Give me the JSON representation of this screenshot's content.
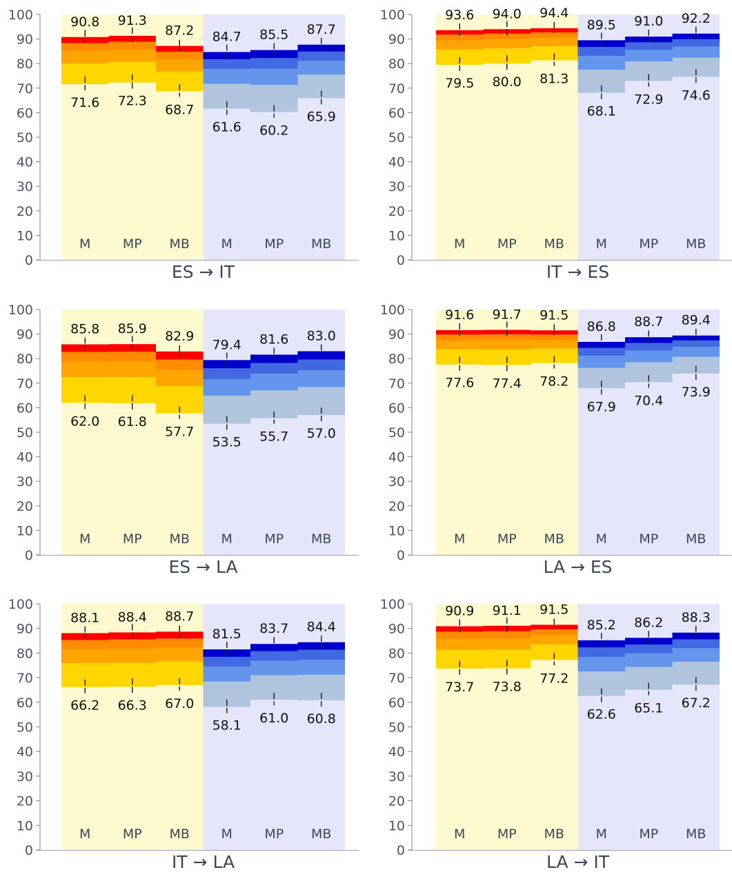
{
  "chart_data": [
    {
      "type": "bar",
      "title": "ES → IT",
      "categories": [
        "M",
        "MP",
        "MB",
        "M",
        "MP",
        "MB"
      ],
      "series": [
        {
          "values": [
            71.6,
            72.3,
            68.7,
            61.6,
            60.2,
            65.9
          ]
        },
        {
          "values": [
            90.8,
            91.3,
            87.2,
            84.7,
            85.5,
            87.7
          ]
        }
      ],
      "ylim": [
        0,
        100
      ],
      "yticks": [
        0,
        10,
        20,
        30,
        40,
        50,
        60,
        70,
        80,
        90,
        100
      ]
    },
    {
      "type": "bar",
      "title": "IT → ES",
      "categories": [
        "M",
        "MP",
        "MB",
        "M",
        "MP",
        "MB"
      ],
      "series": [
        {
          "values": [
            79.5,
            80.0,
            81.3,
            68.1,
            72.9,
            74.6
          ]
        },
        {
          "values": [
            93.6,
            94.0,
            94.4,
            89.5,
            91.0,
            92.2
          ]
        }
      ],
      "ylim": [
        0,
        100
      ],
      "yticks": [
        0,
        10,
        20,
        30,
        40,
        50,
        60,
        70,
        80,
        90,
        100
      ]
    },
    {
      "type": "bar",
      "title": "ES → LA",
      "categories": [
        "M",
        "MP",
        "MB",
        "M",
        "MP",
        "MB"
      ],
      "series": [
        {
          "values": [
            62.0,
            61.8,
            57.7,
            53.5,
            55.7,
            57.0
          ]
        },
        {
          "values": [
            85.8,
            85.9,
            82.9,
            79.4,
            81.6,
            83.0
          ]
        }
      ],
      "ylim": [
        0,
        100
      ],
      "yticks": [
        0,
        10,
        20,
        30,
        40,
        50,
        60,
        70,
        80,
        90,
        100
      ]
    },
    {
      "type": "bar",
      "title": "LA → ES",
      "categories": [
        "M",
        "MP",
        "MB",
        "M",
        "MP",
        "MB"
      ],
      "series": [
        {
          "values": [
            77.6,
            77.4,
            78.2,
            67.9,
            70.4,
            73.9
          ]
        },
        {
          "values": [
            91.6,
            91.7,
            91.5,
            86.8,
            88.7,
            89.4
          ]
        }
      ],
      "ylim": [
        0,
        100
      ],
      "yticks": [
        0,
        10,
        20,
        30,
        40,
        50,
        60,
        70,
        80,
        90,
        100
      ]
    },
    {
      "type": "bar",
      "title": "IT → LA",
      "categories": [
        "M",
        "MP",
        "MB",
        "M",
        "MP",
        "MB"
      ],
      "series": [
        {
          "values": [
            66.2,
            66.3,
            67.0,
            58.1,
            61.0,
            60.8
          ]
        },
        {
          "values": [
            88.1,
            88.4,
            88.7,
            81.5,
            83.7,
            84.4
          ]
        }
      ],
      "ylim": [
        0,
        100
      ],
      "yticks": [
        0,
        10,
        20,
        30,
        40,
        50,
        60,
        70,
        80,
        90,
        100
      ]
    },
    {
      "type": "bar",
      "title": "LA → IT",
      "categories": [
        "M",
        "MP",
        "MB",
        "M",
        "MP",
        "MB"
      ],
      "series": [
        {
          "values": [
            73.7,
            73.8,
            77.2,
            62.6,
            65.1,
            67.2
          ]
        },
        {
          "values": [
            90.9,
            91.1,
            91.5,
            85.2,
            86.2,
            88.3
          ]
        }
      ],
      "ylim": [
        0,
        100
      ],
      "yticks": [
        0,
        10,
        20,
        30,
        40,
        50,
        60,
        70,
        80,
        90,
        100
      ]
    }
  ],
  "colors": {
    "warm_background": "#fff9cf",
    "cool_background": "#e5e6fa",
    "warm_layers": [
      "#ffd700",
      "#ffa500",
      "#ff8c00",
      "#ff0000"
    ],
    "cool_layers": [
      "#b0c4de",
      "#6495ed",
      "#4169e1",
      "#0000cd"
    ]
  }
}
